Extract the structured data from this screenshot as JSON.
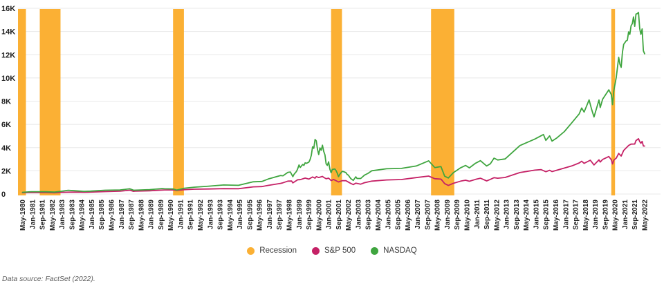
{
  "chart_data": {
    "type": "line",
    "x_unit": "months since May-1980",
    "x_tick_step": 8,
    "x_tick_labels": [
      "May-1980",
      "Jan-1981",
      "Sep-1981",
      "May-1982",
      "Jan-1983",
      "Sep-1983",
      "May-1984",
      "Jan-1985",
      "Sep-1985",
      "May-1986",
      "Jan-1987",
      "Sep-1987",
      "May-1988",
      "Jan-1989",
      "Sep-1989",
      "May-1990",
      "Jan-1991",
      "Sep-1991",
      "May-1992",
      "Jan-1993",
      "Sep-1993",
      "May-1994",
      "Jan-1995",
      "Sep-1995",
      "May-1996",
      "Jan-1997",
      "Sep-1997",
      "May-1998",
      "Jan-1999",
      "Sep-1999",
      "May-2000",
      "Jan-2001",
      "Sep-2001",
      "May-2002",
      "Jan-2003",
      "Sep-2003",
      "May-2004",
      "Jan-2005",
      "Sep-2005",
      "May-2006",
      "Jan-2007",
      "Sep-2007",
      "May-2008",
      "Jan-2009",
      "Sep-2009",
      "May-2010",
      "Jan-2011",
      "Sep-2011",
      "May-2012",
      "Jan-2013",
      "Sep-2013",
      "May-2014",
      "Jan-2015",
      "Sep-2015",
      "May-2016",
      "Jan-2017",
      "Sep-2017",
      "May-2018",
      "Jan-2019",
      "Sep-2019",
      "May-2020",
      "Jan-2021",
      "Sep-2021",
      "May-2022"
    ],
    "y_tick_labels": [
      "0",
      "2K",
      "4K",
      "6K",
      "8K",
      "10K",
      "12K",
      "14K",
      "16K"
    ],
    "y_tick_step": 2000,
    "ylim": [
      0,
      16000
    ],
    "grid": "horizontal",
    "grid_color": "#E8E8E8",
    "axis_text_color": "#1F1F1F",
    "legend_position": "bottom",
    "recessions": {
      "label": "Recession",
      "color": "#FBB034",
      "periods": [
        {
          "label": "Jan 1980 - Jul 1980",
          "months": [
            -4,
            2.8
          ]
        },
        {
          "label": "Jul 1981 - Nov 1982",
          "months": [
            14,
            30.8
          ]
        },
        {
          "label": "Jul 1990 - Mar 1991",
          "months": [
            122,
            130.8
          ]
        },
        {
          "label": "Mar 2001 - Nov 2001",
          "months": [
            250,
            258.8
          ]
        },
        {
          "label": "Dec 2007 - Jun 2009",
          "months": [
            331,
            349.8
          ]
        },
        {
          "label": "Feb 2020 - Apr 2020",
          "months": [
            477,
            480
          ]
        }
      ]
    },
    "series": [
      {
        "id": "sp500",
        "name": "S&P 500",
        "color": "#C52166",
        "points": [
          [
            0,
            111
          ],
          [
            7,
            136
          ],
          [
            12,
            132
          ],
          [
            19,
            123
          ],
          [
            26,
            109
          ],
          [
            31,
            141
          ],
          [
            38,
            162
          ],
          [
            43,
            165
          ],
          [
            50,
            151
          ],
          [
            55,
            167
          ],
          [
            67,
            211
          ],
          [
            79,
            242
          ],
          [
            87,
            330
          ],
          [
            90,
            230
          ],
          [
            91,
            247
          ],
          [
            103,
            278
          ],
          [
            115,
            353
          ],
          [
            122,
            356
          ],
          [
            125,
            304
          ],
          [
            131,
            375
          ],
          [
            139,
            417
          ],
          [
            151,
            436
          ],
          [
            163,
            466
          ],
          [
            175,
            459
          ],
          [
            187,
            616
          ],
          [
            194,
            640
          ],
          [
            199,
            741
          ],
          [
            209,
            914
          ],
          [
            211,
            970
          ],
          [
            215,
            1112
          ],
          [
            218,
            1121
          ],
          [
            219,
            957
          ],
          [
            223,
            1229
          ],
          [
            225,
            1238
          ],
          [
            229,
            1373
          ],
          [
            232,
            1283
          ],
          [
            235,
            1469
          ],
          [
            237,
            1366
          ],
          [
            238,
            1499
          ],
          [
            240,
            1421
          ],
          [
            243,
            1518
          ],
          [
            244,
            1436
          ],
          [
            246,
            1315
          ],
          [
            248,
            1366
          ],
          [
            250,
            1160
          ],
          [
            252,
            1256
          ],
          [
            256,
            1041
          ],
          [
            259,
            1148
          ],
          [
            262,
            1147
          ],
          [
            266,
            911
          ],
          [
            268,
            815
          ],
          [
            270,
            936
          ],
          [
            274,
            848
          ],
          [
            277,
            975
          ],
          [
            283,
            1112
          ],
          [
            295,
            1212
          ],
          [
            307,
            1248
          ],
          [
            319,
            1418
          ],
          [
            329,
            1549
          ],
          [
            334,
            1323
          ],
          [
            339,
            1283
          ],
          [
            340,
            1166
          ],
          [
            342,
            896
          ],
          [
            345,
            735
          ],
          [
            349,
            919
          ],
          [
            355,
            1115
          ],
          [
            359,
            1187
          ],
          [
            362,
            1101
          ],
          [
            367,
            1258
          ],
          [
            371,
            1364
          ],
          [
            376,
            1131
          ],
          [
            379,
            1258
          ],
          [
            382,
            1408
          ],
          [
            385,
            1362
          ],
          [
            391,
            1426
          ],
          [
            403,
            1848
          ],
          [
            415,
            2059
          ],
          [
            420,
            2107
          ],
          [
            424,
            1920
          ],
          [
            427,
            2044
          ],
          [
            429,
            1932
          ],
          [
            439,
            2239
          ],
          [
            445,
            2423
          ],
          [
            451,
            2674
          ],
          [
            453,
            2824
          ],
          [
            455,
            2641
          ],
          [
            460,
            2914
          ],
          [
            463,
            2507
          ],
          [
            467,
            2946
          ],
          [
            468,
            2752
          ],
          [
            470,
            2980
          ],
          [
            475,
            3231
          ],
          [
            477,
            2954
          ],
          [
            478,
            2585
          ],
          [
            479,
            2912
          ],
          [
            481,
            3100
          ],
          [
            483,
            3500
          ],
          [
            485,
            3270
          ],
          [
            487,
            3756
          ],
          [
            491,
            4181
          ],
          [
            493,
            4298
          ],
          [
            496,
            4308
          ],
          [
            497,
            4605
          ],
          [
            499,
            4766
          ],
          [
            500,
            4516
          ],
          [
            501,
            4374
          ],
          [
            502,
            4530
          ],
          [
            503,
            4132
          ],
          [
            504,
            4132
          ]
        ]
      },
      {
        "id": "nasdaq",
        "name": "NASDAQ",
        "color": "#3FA53F",
        "points": [
          [
            0,
            150
          ],
          [
            7,
            202
          ],
          [
            12,
            204
          ],
          [
            19,
            196
          ],
          [
            26,
            167
          ],
          [
            31,
            232
          ],
          [
            37,
            320
          ],
          [
            43,
            279
          ],
          [
            50,
            230
          ],
          [
            55,
            247
          ],
          [
            67,
            325
          ],
          [
            79,
            349
          ],
          [
            87,
            455
          ],
          [
            90,
            330
          ],
          [
            103,
            381
          ],
          [
            113,
            470
          ],
          [
            115,
            455
          ],
          [
            122,
            438
          ],
          [
            125,
            340
          ],
          [
            131,
            500
          ],
          [
            139,
            586
          ],
          [
            151,
            677
          ],
          [
            163,
            777
          ],
          [
            175,
            752
          ],
          [
            187,
            1052
          ],
          [
            194,
            1080
          ],
          [
            199,
            1291
          ],
          [
            209,
            1594
          ],
          [
            211,
            1570
          ],
          [
            215,
            1868
          ],
          [
            217,
            1895
          ],
          [
            219,
            1499
          ],
          [
            220,
            1694
          ],
          [
            222,
            1950
          ],
          [
            223,
            2193
          ],
          [
            224,
            2506
          ],
          [
            225,
            2288
          ],
          [
            227,
            2543
          ],
          [
            228,
            2471
          ],
          [
            229,
            2686
          ],
          [
            230,
            2638
          ],
          [
            232,
            2746
          ],
          [
            233,
            2966
          ],
          [
            234,
            3336
          ],
          [
            235,
            4069
          ],
          [
            236,
            3940
          ],
          [
            237,
            4697
          ],
          [
            238,
            4573
          ],
          [
            239,
            3861
          ],
          [
            240,
            3401
          ],
          [
            241,
            3966
          ],
          [
            242,
            3767
          ],
          [
            243,
            4206
          ],
          [
            244,
            3673
          ],
          [
            245,
            3370
          ],
          [
            246,
            2598
          ],
          [
            247,
            2470
          ],
          [
            248,
            2773
          ],
          [
            249,
            2152
          ],
          [
            250,
            1840
          ],
          [
            251,
            2116
          ],
          [
            253,
            2161
          ],
          [
            254,
            2027
          ],
          [
            255,
            1805
          ],
          [
            256,
            1498
          ],
          [
            257,
            1690
          ],
          [
            259,
            1950
          ],
          [
            260,
            1934
          ],
          [
            262,
            1845
          ],
          [
            263,
            1688
          ],
          [
            264,
            1616
          ],
          [
            265,
            1463
          ],
          [
            266,
            1328
          ],
          [
            268,
            1172
          ],
          [
            269,
            1330
          ],
          [
            270,
            1479
          ],
          [
            271,
            1336
          ],
          [
            274,
            1341
          ],
          [
            277,
            1623
          ],
          [
            280,
            1787
          ],
          [
            283,
            2003
          ],
          [
            295,
            2175
          ],
          [
            307,
            2205
          ],
          [
            319,
            2415
          ],
          [
            329,
            2859
          ],
          [
            334,
            2279
          ],
          [
            339,
            2368
          ],
          [
            342,
            1536
          ],
          [
            345,
            1378
          ],
          [
            349,
            1835
          ],
          [
            355,
            2269
          ],
          [
            359,
            2461
          ],
          [
            362,
            2255
          ],
          [
            367,
            2653
          ],
          [
            371,
            2874
          ],
          [
            376,
            2415
          ],
          [
            379,
            2605
          ],
          [
            382,
            3092
          ],
          [
            385,
            2935
          ],
          [
            391,
            3020
          ],
          [
            403,
            4177
          ],
          [
            415,
            4736
          ],
          [
            422,
            5128
          ],
          [
            424,
            4620
          ],
          [
            427,
            5007
          ],
          [
            429,
            4558
          ],
          [
            433,
            4843
          ],
          [
            439,
            5383
          ],
          [
            445,
            6140
          ],
          [
            451,
            6903
          ],
          [
            453,
            7411
          ],
          [
            455,
            7063
          ],
          [
            459,
            8110
          ],
          [
            461,
            7306
          ],
          [
            463,
            6635
          ],
          [
            467,
            8095
          ],
          [
            468,
            7453
          ],
          [
            470,
            8175
          ],
          [
            475,
            8973
          ],
          [
            477,
            8567
          ],
          [
            478,
            7700
          ],
          [
            479,
            8890
          ],
          [
            481,
            10059
          ],
          [
            483,
            11775
          ],
          [
            484,
            11168
          ],
          [
            485,
            10912
          ],
          [
            486,
            12199
          ],
          [
            487,
            12888
          ],
          [
            489,
            13192
          ],
          [
            490,
            13247
          ],
          [
            491,
            13963
          ],
          [
            492,
            13749
          ],
          [
            493,
            14504
          ],
          [
            494,
            14673
          ],
          [
            495,
            15259
          ],
          [
            496,
            14449
          ],
          [
            497,
            15498
          ],
          [
            498,
            15538
          ],
          [
            499,
            15645
          ],
          [
            500,
            14240
          ],
          [
            501,
            13751
          ],
          [
            502,
            14221
          ],
          [
            503,
            12335
          ],
          [
            504,
            12081
          ]
        ]
      }
    ]
  },
  "legend": {
    "items": [
      {
        "id": "recession",
        "label": "Recession",
        "color": "#FBB034"
      },
      {
        "id": "sp500",
        "label": "S&P 500",
        "color": "#C52166"
      },
      {
        "id": "nasdaq",
        "label": "NASDAQ",
        "color": "#3FA53F"
      }
    ]
  },
  "footer": {
    "text": "Data source: FactSet (2022)."
  }
}
